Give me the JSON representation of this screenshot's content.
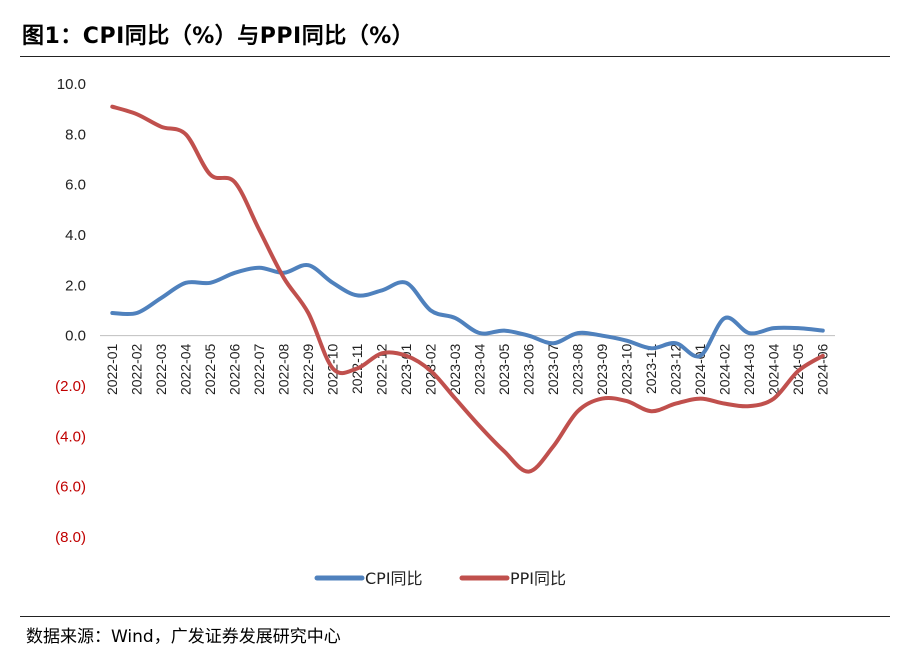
{
  "header": {
    "title": "图1：CPI同比（%）与PPI同比（%）"
  },
  "footer": {
    "source": "数据来源：Wind，广发证券发展研究中心"
  },
  "chart_data": {
    "type": "line",
    "title": "图1：CPI同比（%）与PPI同比（%）",
    "xlabel": "",
    "ylabel": "",
    "ylim": [
      -8,
      10
    ],
    "yticks": [
      10,
      8,
      6,
      4,
      2,
      0,
      -2,
      -4,
      -6,
      -8
    ],
    "ytick_labels": [
      "10.0",
      "8.0",
      "6.0",
      "4.0",
      "2.0",
      "0.0",
      "(2.0)",
      "(4.0)",
      "(6.0)",
      "(8.0)"
    ],
    "grid": false,
    "legend_position": "bottom",
    "categories": [
      "2022-01",
      "2022-02",
      "2022-03",
      "2022-04",
      "2022-05",
      "2022-06",
      "2022-07",
      "2022-08",
      "2022-09",
      "2022-10",
      "2022-11",
      "2022-12",
      "2023-01",
      "2023-02",
      "2023-03",
      "2023-04",
      "2023-05",
      "2023-06",
      "2023-07",
      "2023-08",
      "2023-09",
      "2023-10",
      "2023-11",
      "2023-12",
      "2024-01",
      "2024-02",
      "2024-03",
      "2024-04",
      "2024-05",
      "2024-06"
    ],
    "series": [
      {
        "name": "CPI同比",
        "color": "#4f81bd",
        "values": [
          0.9,
          0.9,
          1.5,
          2.1,
          2.1,
          2.5,
          2.7,
          2.5,
          2.8,
          2.1,
          1.6,
          1.8,
          2.1,
          1.0,
          0.7,
          0.1,
          0.2,
          0.0,
          -0.3,
          0.1,
          0.0,
          -0.2,
          -0.5,
          -0.3,
          -0.8,
          0.7,
          0.1,
          0.3,
          0.3,
          0.2
        ]
      },
      {
        "name": "PPI同比",
        "color": "#c0504d",
        "values": [
          9.1,
          8.8,
          8.3,
          8.0,
          6.4,
          6.1,
          4.2,
          2.3,
          0.9,
          -1.3,
          -1.3,
          -0.7,
          -0.8,
          -1.4,
          -2.5,
          -3.6,
          -4.6,
          -5.4,
          -4.4,
          -3.0,
          -2.5,
          -2.6,
          -3.0,
          -2.7,
          -2.5,
          -2.7,
          -2.8,
          -2.5,
          -1.4,
          -0.8
        ]
      }
    ],
    "negative_label_color": "#c00000"
  }
}
